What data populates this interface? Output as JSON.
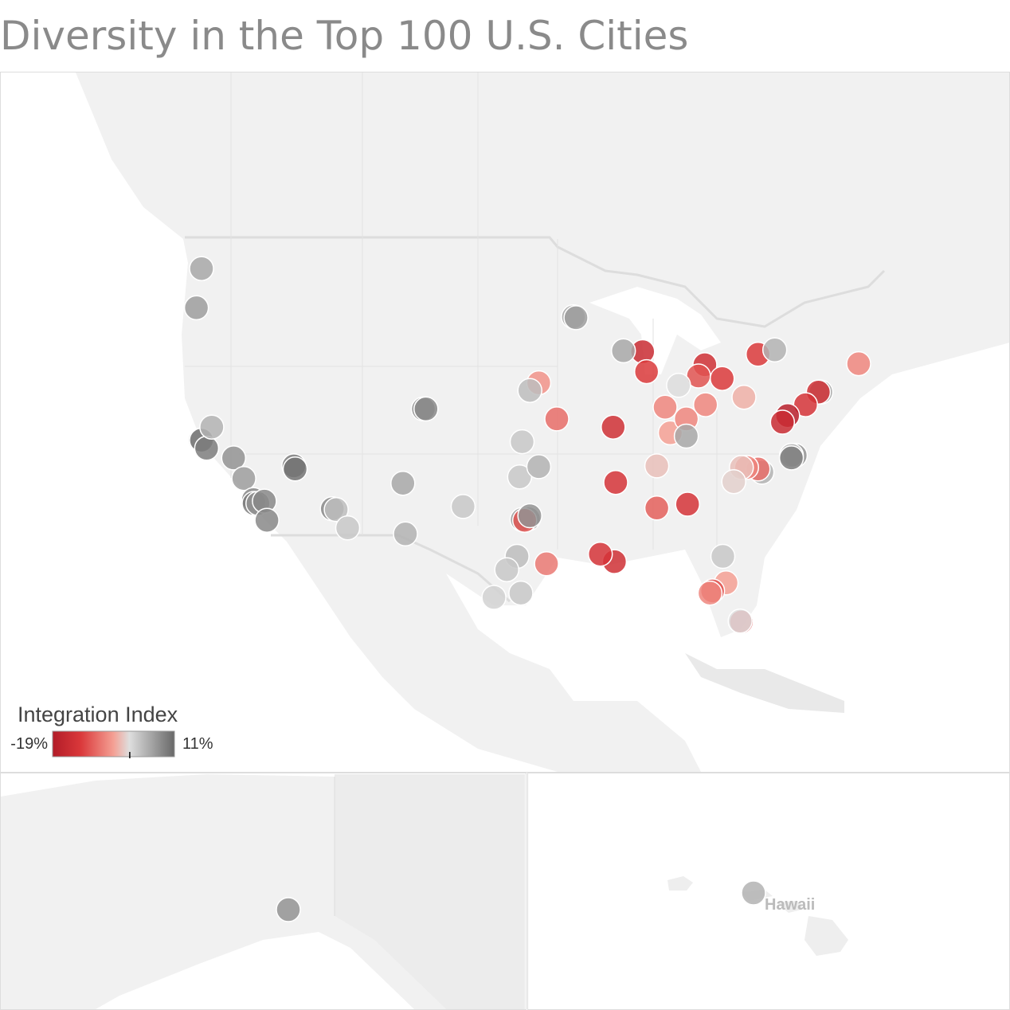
{
  "chart_data": {
    "type": "map",
    "title": "Diversity in the Top 100 U.S. Cities",
    "legend_title": "Integration Index",
    "color_scale": {
      "min": {
        "value": -19,
        "label": "-19%"
      },
      "max": {
        "value": 11,
        "label": "11%"
      }
    },
    "points": {
      "lon": [
        -122.3,
        -122.7,
        -122.4,
        -122.3,
        -121.9,
        -121.5,
        -119.8,
        -119.0,
        -118.25,
        -118.2,
        -117.9,
        -117.4,
        -117.2,
        -115.1,
        -115.0,
        -112.1,
        -111.8,
        -110.9,
        -106.6,
        -106.4,
        -105.0,
        -104.8,
        -101.9,
        -97.3,
        -97.5,
        -96.0,
        -96.0,
        -96.7,
        -96.8,
        -97.3,
        -97.1,
        -96.7,
        -97.7,
        -98.5,
        -95.4,
        -97.4,
        -99.5,
        -93.3,
        -93.1,
        -94.6,
        -90.2,
        -90.0,
        -86.8,
        -85.75,
        -86.8,
        -84.4,
        -90.1,
        -91.2,
        -87.9,
        -89.4,
        -87.6,
        -83.05,
        -83.55,
        -85.1,
        -86.15,
        -83.0,
        -84.5,
        -84.5,
        -81.7,
        -80.0,
        -78.9,
        -77.6,
        -71.06,
        -74.0,
        -74.2,
        -75.2,
        -76.6,
        -77.0,
        -76.0,
        -76.3,
        -76.3,
        -78.6,
        -78.9,
        -79.8,
        -80.2,
        -80.8,
        -81.65,
        -81.4,
        -82.45,
        -82.65,
        -80.2,
        -80.3
      ],
      "lat": [
        47.6,
        45.5,
        37.8,
        37.8,
        37.3,
        38.6,
        36.7,
        35.4,
        34.05,
        33.8,
        33.8,
        33.95,
        32.7,
        36.2,
        36.0,
        33.45,
        33.4,
        32.2,
        35.1,
        31.8,
        39.7,
        39.7,
        33.6,
        37.7,
        35.5,
        36.15,
        41.25,
        40.8,
        32.8,
        32.75,
        32.7,
        33.0,
        30.3,
        29.4,
        29.8,
        27.8,
        27.5,
        45.0,
        44.95,
        39.1,
        38.6,
        35.15,
        36.2,
        38.25,
        33.5,
        33.75,
        29.95,
        30.45,
        43.05,
        43.1,
        41.9,
        42.3,
        41.65,
        41.1,
        39.8,
        39.95,
        39.1,
        38.05,
        41.5,
        40.4,
        42.9,
        43.15,
        42.36,
        40.7,
        40.7,
        39.95,
        39.3,
        38.9,
        36.85,
        36.85,
        36.7,
        35.8,
        36.0,
        36.1,
        36.1,
        35.2,
        30.3,
        28.5,
        27.95,
        27.8,
        25.8,
        25.85
      ],
      "values": [
        5,
        6,
        8,
        9,
        9,
        4,
        7,
        6,
        8,
        9,
        7,
        8,
        8,
        9,
        10,
        8,
        3,
        2,
        5,
        4,
        7,
        8,
        2,
        2,
        2,
        4,
        -5,
        3,
        8,
        6,
        -10,
        7,
        3,
        2,
        -7,
        2,
        1,
        5,
        6,
        -8,
        -14,
        -13,
        -2,
        -4,
        -9,
        -13,
        -14,
        -13,
        -15,
        5,
        -12,
        -14,
        -10,
        0,
        -6,
        -6,
        -6,
        5,
        -12,
        -3,
        -12,
        4,
        -6,
        5,
        -14,
        -13,
        -18,
        -15,
        7,
        3,
        9,
        4,
        -8,
        -6,
        -2,
        -1,
        2,
        -4,
        -10,
        -6,
        -12,
        0
      ]
    },
    "alaska": {
      "lon": [
        -149.9
      ],
      "lat": [
        61.2
      ],
      "values": [
        7
      ]
    },
    "hawaii": {
      "lon": [
        -157.9
      ],
      "lat": [
        21.3
      ],
      "values": [
        4
      ]
    },
    "hawaii_label": "Hawaii"
  }
}
